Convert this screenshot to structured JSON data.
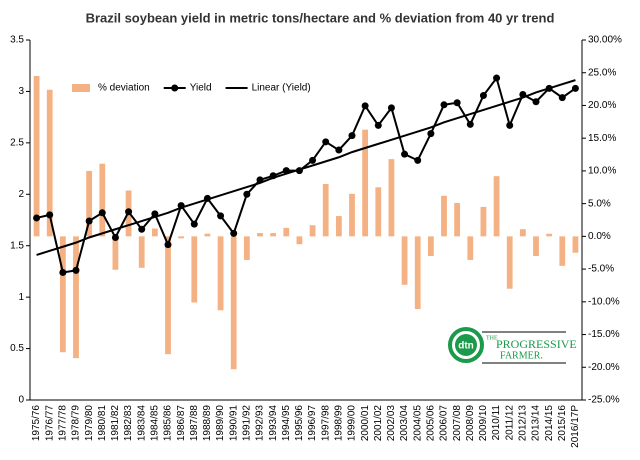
{
  "chart_data": {
    "type": "bar-line",
    "title": "Brazil soybean yield in metric tons/hectare and % deviation from 40 yr trend",
    "categories": [
      "1975/76",
      "1976/77",
      "1977/78",
      "1978/79",
      "1979/80",
      "1980/81",
      "1981/82",
      "1982/83",
      "1983/84",
      "1984/85",
      "1985/86",
      "1986/87",
      "1987/88",
      "1988/89",
      "1989/90",
      "1990/91",
      "1991/92",
      "1992/93",
      "1993/94",
      "1994/95",
      "1995/96",
      "1996/97",
      "1997/98",
      "1998/99",
      "1999/00",
      "2000/01",
      "2001/02",
      "2002/03",
      "2003/04",
      "2004/05",
      "2005/06",
      "2006/07",
      "2007/08",
      "2008/09",
      "2009/10",
      "2010/11",
      "2011/12",
      "2012/13",
      "2013/14",
      "2014/15",
      "2015/16",
      "2016/17P"
    ],
    "series": [
      {
        "name": "% deviation",
        "type": "bar",
        "axis": "y2",
        "color": "#f4b183",
        "values": [
          24.5,
          22.4,
          -17.7,
          -18.6,
          10.0,
          11.1,
          -5.1,
          7.0,
          -4.8,
          1.2,
          -18.0,
          -0.3,
          -10.1,
          0.4,
          -11.3,
          -20.3,
          -3.6,
          0.5,
          0.5,
          1.3,
          -1.2,
          1.7,
          8.0,
          3.1,
          6.5,
          16.3,
          7.5,
          11.8,
          -7.4,
          -11.1,
          -3.0,
          6.2,
          5.1,
          -3.6,
          4.5,
          9.2,
          -8.0,
          1.1,
          -3.0,
          0.4,
          -4.5,
          -2.5
        ]
      },
      {
        "name": "Yield",
        "type": "line-marker",
        "color": "#000000",
        "values": [
          1.77,
          1.8,
          1.24,
          1.26,
          1.74,
          1.82,
          1.58,
          1.83,
          1.66,
          1.81,
          1.51,
          1.89,
          1.71,
          1.96,
          1.79,
          1.62,
          2.0,
          2.14,
          2.18,
          2.23,
          2.23,
          2.33,
          2.51,
          2.43,
          2.57,
          2.86,
          2.67,
          2.84,
          2.39,
          2.33,
          2.59,
          2.87,
          2.89,
          2.68,
          2.96,
          3.13,
          2.67,
          2.97,
          2.9,
          3.03,
          2.94,
          3.03
        ]
      },
      {
        "name": "Linear (Yield)",
        "type": "line",
        "color": "#000000",
        "values": [
          1.41,
          1.45,
          1.49,
          1.53,
          1.58,
          1.62,
          1.66,
          1.7,
          1.74,
          1.78,
          1.82,
          1.87,
          1.91,
          1.95,
          1.99,
          2.03,
          2.07,
          2.11,
          2.16,
          2.2,
          2.24,
          2.28,
          2.32,
          2.36,
          2.41,
          2.45,
          2.49,
          2.53,
          2.57,
          2.61,
          2.65,
          2.7,
          2.74,
          2.78,
          2.82,
          2.86,
          2.9,
          2.94,
          2.99,
          3.03,
          3.07,
          3.11
        ]
      }
    ],
    "ylim": [
      0,
      3.5
    ],
    "yticks": [
      0,
      0.5,
      1,
      1.5,
      2,
      2.5,
      3,
      3.5
    ],
    "y2lim": [
      -25,
      30
    ],
    "y2ticks": [
      {
        "value": -25,
        "label": "-25.0%"
      },
      {
        "value": -20,
        "label": "-20.0%"
      },
      {
        "value": -15,
        "label": "-15.0%"
      },
      {
        "value": -10,
        "label": "-10.0%"
      },
      {
        "value": -5,
        "label": "-5.0%"
      },
      {
        "value": 0,
        "label": "0.0%"
      },
      {
        "value": 5,
        "label": "5.0%"
      },
      {
        "value": 10,
        "label": "10.0%"
      },
      {
        "value": 15,
        "label": "15.0%"
      },
      {
        "value": 20,
        "label": "20.0%"
      },
      {
        "value": 25,
        "label": "25.0%"
      },
      {
        "value": 30,
        "label": "30.00%"
      }
    ],
    "legend": "top-left",
    "logo": {
      "mark": "dtn",
      "line1": "THE",
      "line2": "PROGRESSIVE",
      "line3": "FARMER."
    }
  }
}
